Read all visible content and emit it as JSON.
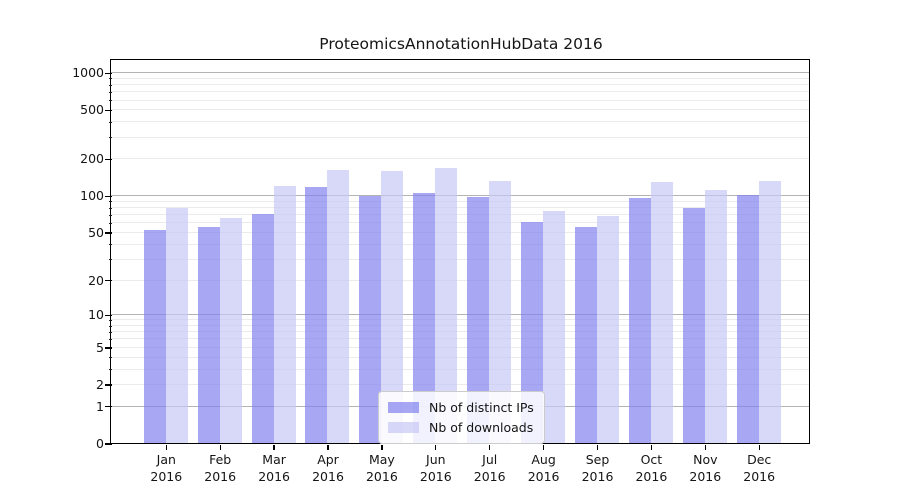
{
  "chart_data": {
    "type": "bar",
    "title": "ProteomicsAnnotationHubData 2016",
    "categories": [
      {
        "line1": "Jan",
        "line2": "2016"
      },
      {
        "line1": "Feb",
        "line2": "2016"
      },
      {
        "line1": "Mar",
        "line2": "2016"
      },
      {
        "line1": "Apr",
        "line2": "2016"
      },
      {
        "line1": "May",
        "line2": "2016"
      },
      {
        "line1": "Jun",
        "line2": "2016"
      },
      {
        "line1": "Jul",
        "line2": "2016"
      },
      {
        "line1": "Aug",
        "line2": "2016"
      },
      {
        "line1": "Sep",
        "line2": "2016"
      },
      {
        "line1": "Oct",
        "line2": "2016"
      },
      {
        "line1": "Nov",
        "line2": "2016"
      },
      {
        "line1": "Dec",
        "line2": "2016"
      }
    ],
    "series": [
      {
        "name": "Nb of distinct IPs",
        "color": "rgba(130,130,240,0.7)",
        "values": [
          52,
          55,
          71,
          119,
          100,
          106,
          97,
          61,
          55,
          96,
          79,
          101
        ]
      },
      {
        "name": "Nb of downloads",
        "color": "rgba(200,200,245,0.7)",
        "values": [
          80,
          66,
          120,
          162,
          158,
          170,
          131,
          75,
          68,
          129,
          112,
          131
        ]
      }
    ],
    "xlabel": "",
    "ylabel": "",
    "y_axis": {
      "scale": "log1p",
      "ylim": [
        0,
        1000
      ],
      "tick_labels": [
        1000,
        500,
        200,
        100,
        50,
        20,
        10,
        5,
        2,
        1,
        0
      ],
      "major_gridline_values": [
        1,
        10,
        100,
        1000
      ],
      "minor_gridline_multiples": [
        2,
        3,
        4,
        5,
        6,
        7,
        8,
        9
      ],
      "minor_gridline_decades": [
        1,
        10,
        100
      ]
    },
    "grid": true,
    "legend_position": "lower center"
  },
  "colors": {
    "bar_distinct_ips": "rgba(130,130,240,0.7)",
    "bar_downloads": "rgba(200,200,245,0.7)",
    "major_grid": "#b3b3b3",
    "minor_grid": "#ebebeb",
    "spine": "#000000",
    "text": "#151515",
    "legend_border": "#cccccc",
    "legend_background": "rgba(255,255,255,0.85)"
  }
}
